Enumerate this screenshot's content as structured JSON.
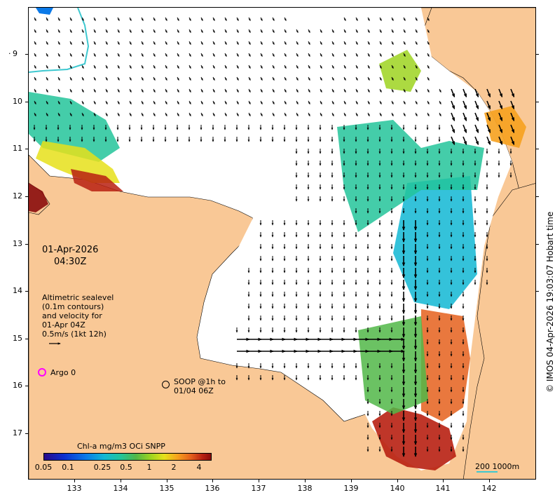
{
  "map": {
    "date": "01-Apr-2026",
    "time": "04:30Z",
    "altimetry_lines": [
      "Altimetric sealevel",
      "(0.1m contours)",
      "and velocity for",
      "01-Apr 04Z",
      "0.5m/s (1kt 12h)"
    ],
    "argo_label": "Argo 0",
    "soop_lines": [
      "SOOP @1h to",
      "01/04 06Z"
    ],
    "credit": "© IMOS 04-Apr-2026 19:03:07 Hobart time",
    "scale_label": "200  1000m",
    "latitude_labels": [
      "9",
      "10",
      "11",
      "12",
      "13",
      "14",
      "15",
      "16",
      "17"
    ],
    "longitude_labels": [
      "133",
      "134",
      "135",
      "136",
      "137",
      "138",
      "139",
      "140",
      "141",
      "142"
    ],
    "colors": {
      "land": "#f9c896",
      "sea": "#ffffff",
      "argo": "#ff00ff",
      "scale_line": "#3ec8d0"
    }
  },
  "colorbar": {
    "title": "Chl-a mg/m3 OCi SNPP",
    "ticks": [
      "0.05",
      "0.1",
      "0.25",
      "0.5",
      "1",
      "2",
      "4"
    ]
  }
}
